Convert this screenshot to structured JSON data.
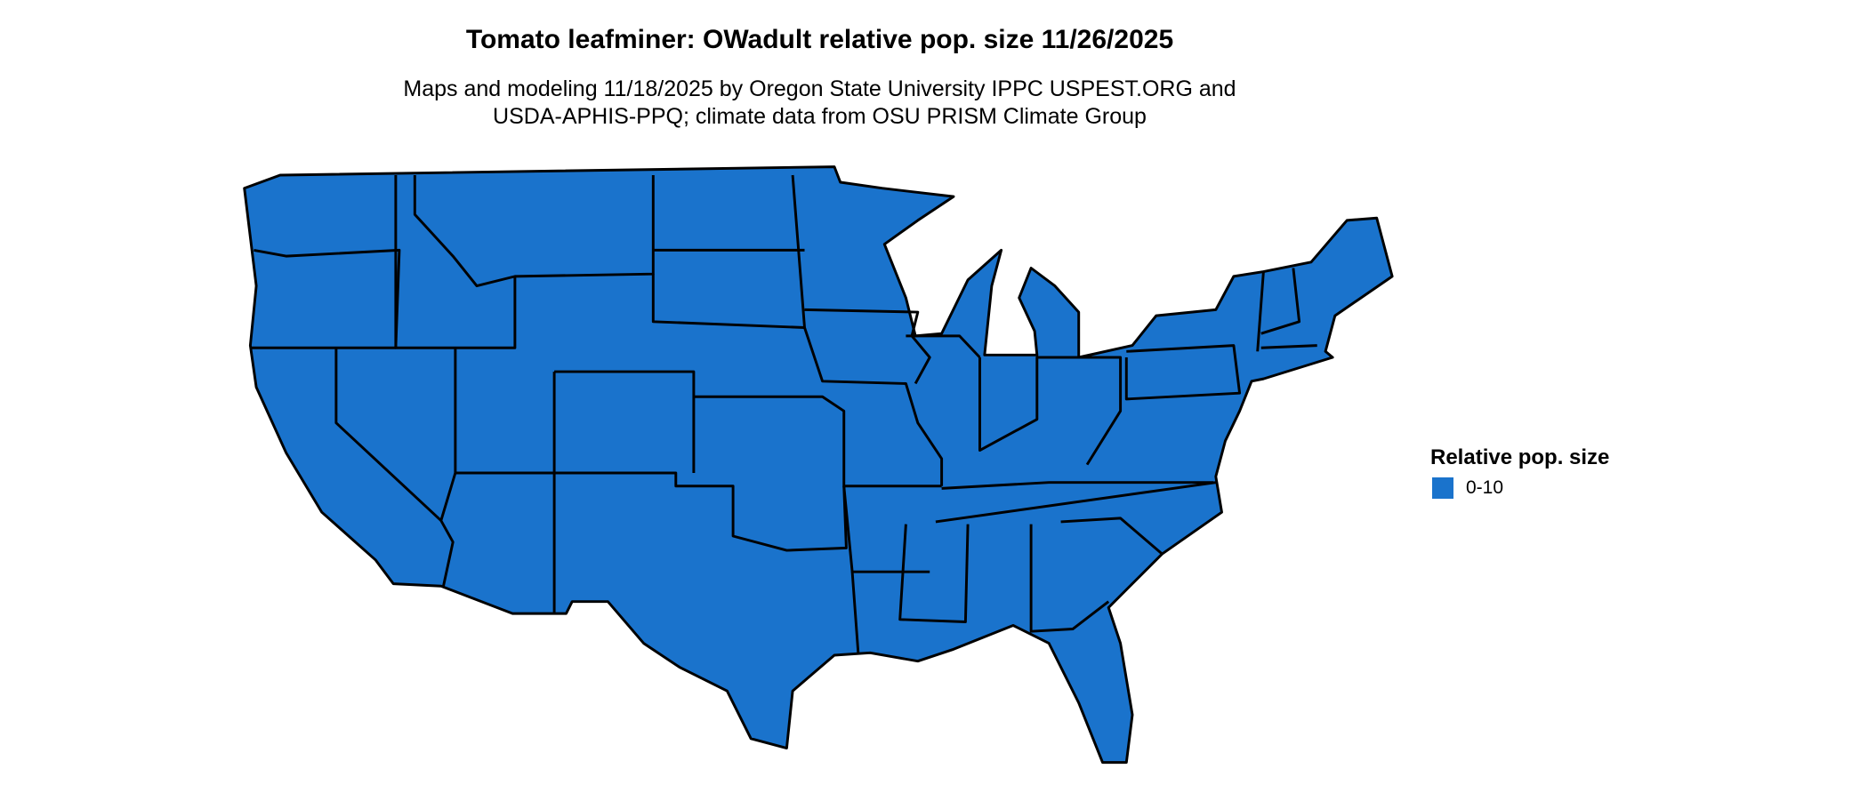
{
  "title": "Tomato leafminer: OWadult relative pop. size 11/26/2025",
  "subtitle_lines": [
    "Maps and modeling 11/18/2025 by Oregon State University IPPC USPEST.ORG and",
    "USDA-APHIS-PPQ; climate data from OSU PRISM Climate Group"
  ],
  "map": {
    "region": "Contiguous United States",
    "fill_color": "#1a73cc",
    "border_color": "#000000"
  },
  "legend": {
    "title": "Relative pop. size",
    "items": [
      {
        "label": "0-10",
        "color": "#1a73cc"
      }
    ]
  }
}
